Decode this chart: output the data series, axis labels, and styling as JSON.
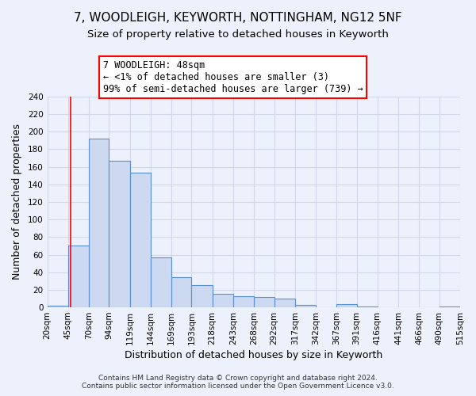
{
  "title": "7, WOODLEIGH, KEYWORTH, NOTTINGHAM, NG12 5NF",
  "subtitle": "Size of property relative to detached houses in Keyworth",
  "xlabel": "Distribution of detached houses by size in Keyworth",
  "ylabel": "Number of detached properties",
  "bin_edges": [
    20,
    45,
    70,
    94,
    119,
    144,
    169,
    193,
    218,
    243,
    268,
    292,
    317,
    342,
    367,
    391,
    416,
    441,
    466,
    490,
    515
  ],
  "counts": [
    2,
    70,
    192,
    167,
    153,
    57,
    34,
    25,
    15,
    13,
    12,
    10,
    3,
    0,
    4,
    1,
    0,
    0,
    0,
    1
  ],
  "bar_facecolor": "#ccd9f0",
  "bar_edgecolor": "#5b8fd4",
  "redline_x": 48,
  "annotation_title": "7 WOODLEIGH: 48sqm",
  "annotation_line1": "← <1% of detached houses are smaller (3)",
  "annotation_line2": "99% of semi-detached houses are larger (739) →",
  "annotation_box_color": "white",
  "annotation_border_color": "red",
  "ylim": [
    0,
    240
  ],
  "yticks": [
    0,
    20,
    40,
    60,
    80,
    100,
    120,
    140,
    160,
    180,
    200,
    220,
    240
  ],
  "tick_labels": [
    "20sqm",
    "45sqm",
    "70sqm",
    "94sqm",
    "119sqm",
    "144sqm",
    "169sqm",
    "193sqm",
    "218sqm",
    "243sqm",
    "268sqm",
    "292sqm",
    "317sqm",
    "342sqm",
    "367sqm",
    "391sqm",
    "416sqm",
    "441sqm",
    "466sqm",
    "490sqm",
    "515sqm"
  ],
  "footer1": "Contains HM Land Registry data © Crown copyright and database right 2024.",
  "footer2": "Contains public sector information licensed under the Open Government Licence v3.0.",
  "bg_color": "#edf1fb",
  "grid_color": "#d0d8e8",
  "title_fontsize": 11,
  "subtitle_fontsize": 9.5,
  "xlabel_fontsize": 9,
  "ylabel_fontsize": 9,
  "footer_fontsize": 6.5,
  "tick_fontsize": 7.5
}
